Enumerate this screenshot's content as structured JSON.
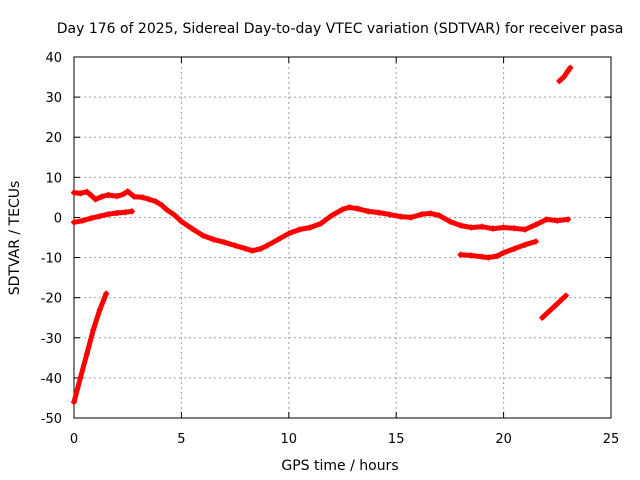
{
  "chart_data": {
    "type": "scatter",
    "title": "Day 176 of 2025, Sidereal Day-to-day VTEC variation (SDTVAR) for receiver pasa",
    "xlabel": "GPS time / hours",
    "ylabel": "SDTVAR / TECUs",
    "xlim": [
      0,
      25
    ],
    "ylim": [
      -50,
      40
    ],
    "xticks": [
      "0",
      "5",
      "10",
      "15",
      "20",
      "25"
    ],
    "yticks": [
      "-50",
      "-40",
      "-30",
      "-20",
      "-10",
      "0",
      "10",
      "20",
      "30",
      "40"
    ],
    "grid": true,
    "marker_color": "#ff0000",
    "series": [
      {
        "name": "track-1",
        "points": [
          [
            0.0,
            6.2
          ],
          [
            0.3,
            6.0
          ],
          [
            0.6,
            6.4
          ],
          [
            0.8,
            5.5
          ],
          [
            1.0,
            4.5
          ],
          [
            1.3,
            5.2
          ],
          [
            1.6,
            5.6
          ],
          [
            2.0,
            5.3
          ],
          [
            2.3,
            5.8
          ],
          [
            2.5,
            6.5
          ],
          [
            2.8,
            5.2
          ],
          [
            3.2,
            5.0
          ],
          [
            3.5,
            4.5
          ],
          [
            3.8,
            4.0
          ],
          [
            4.1,
            3.0
          ],
          [
            4.3,
            2.0
          ],
          [
            4.7,
            0.5
          ],
          [
            5.0,
            -1.0
          ],
          [
            5.5,
            -2.8
          ],
          [
            6.0,
            -4.5
          ],
          [
            6.5,
            -5.5
          ],
          [
            7.0,
            -6.2
          ],
          [
            7.5,
            -7.0
          ],
          [
            8.0,
            -7.8
          ],
          [
            8.3,
            -8.3
          ],
          [
            8.7,
            -7.8
          ],
          [
            9.0,
            -7.0
          ],
          [
            9.5,
            -5.5
          ],
          [
            10.0,
            -4.0
          ],
          [
            10.5,
            -3.0
          ],
          [
            11.0,
            -2.5
          ],
          [
            11.5,
            -1.5
          ],
          [
            12.0,
            0.5
          ],
          [
            12.5,
            2.0
          ],
          [
            12.8,
            2.5
          ],
          [
            13.2,
            2.2
          ],
          [
            13.7,
            1.5
          ],
          [
            14.2,
            1.2
          ],
          [
            14.7,
            0.7
          ],
          [
            15.2,
            0.2
          ],
          [
            15.7,
            0.0
          ],
          [
            16.2,
            0.8
          ],
          [
            16.6,
            1.0
          ],
          [
            17.0,
            0.5
          ],
          [
            17.5,
            -1.0
          ],
          [
            18.0,
            -2.0
          ],
          [
            18.5,
            -2.5
          ],
          [
            19.0,
            -2.3
          ],
          [
            19.5,
            -2.8
          ],
          [
            20.0,
            -2.5
          ],
          [
            20.5,
            -2.7
          ],
          [
            21.0,
            -3.0
          ],
          [
            21.5,
            -1.8
          ],
          [
            22.0,
            -0.5
          ],
          [
            22.5,
            -0.8
          ],
          [
            23.0,
            -0.5
          ]
        ]
      },
      {
        "name": "track-2",
        "points": [
          [
            0.0,
            -1.2
          ],
          [
            0.4,
            -0.8
          ],
          [
            0.8,
            -0.2
          ],
          [
            1.2,
            0.3
          ],
          [
            1.6,
            0.8
          ],
          [
            2.0,
            1.1
          ],
          [
            2.4,
            1.3
          ],
          [
            2.7,
            1.5
          ]
        ]
      },
      {
        "name": "track-3",
        "points": [
          [
            0.0,
            -46.0
          ],
          [
            0.3,
            -40.0
          ],
          [
            0.6,
            -34.0
          ],
          [
            0.9,
            -28.0
          ],
          [
            1.2,
            -23.0
          ],
          [
            1.5,
            -19.0
          ]
        ]
      },
      {
        "name": "track-4",
        "points": [
          [
            18.0,
            -9.3
          ],
          [
            18.5,
            -9.5
          ],
          [
            19.0,
            -9.8
          ],
          [
            19.3,
            -10.0
          ],
          [
            19.7,
            -9.6
          ],
          [
            20.0,
            -8.8
          ],
          [
            20.5,
            -7.8
          ],
          [
            21.0,
            -6.8
          ],
          [
            21.5,
            -6.0
          ]
        ]
      },
      {
        "name": "track-5",
        "points": [
          [
            21.8,
            -25.0
          ],
          [
            22.1,
            -23.5
          ],
          [
            22.4,
            -22.0
          ],
          [
            22.7,
            -20.5
          ],
          [
            22.9,
            -19.5
          ]
        ]
      },
      {
        "name": "track-6",
        "points": [
          [
            22.6,
            34.0
          ],
          [
            22.8,
            35.0
          ],
          [
            23.0,
            36.5
          ],
          [
            23.1,
            37.3
          ]
        ]
      }
    ]
  }
}
